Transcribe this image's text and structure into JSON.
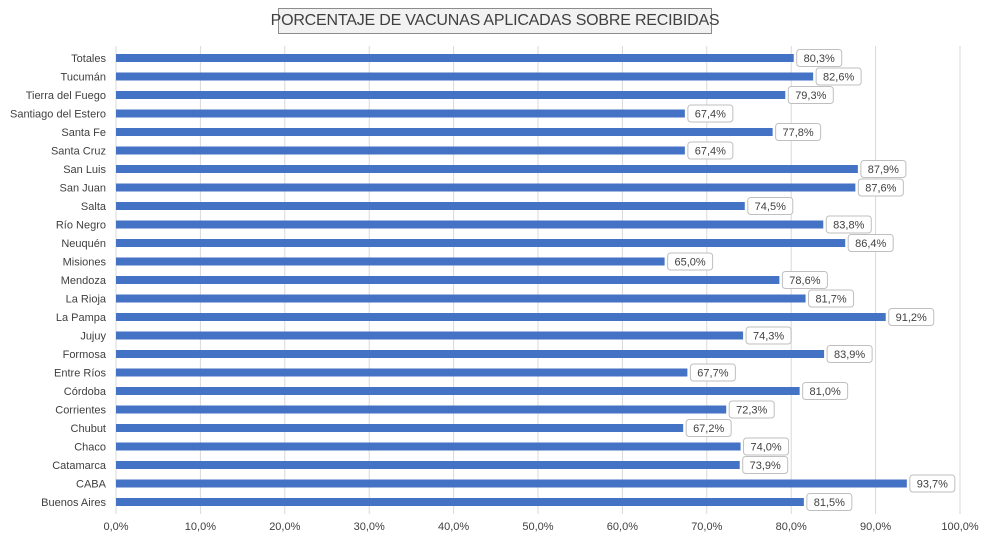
{
  "chart_data": {
    "type": "bar",
    "orientation": "horizontal",
    "title": "PORCENTAJE DE VACUNAS APLICADAS SOBRE RECIBIDAS",
    "categories": [
      "Totales",
      "Tucumán",
      "Tierra del Fuego",
      "Santiago del Estero",
      "Santa Fe",
      "Santa Cruz",
      "San Luis",
      "San Juan",
      "Salta",
      "Río Negro",
      "Neuquén",
      "Misiones",
      "Mendoza",
      "La Rioja",
      "La Pampa",
      "Jujuy",
      "Formosa",
      "Entre Ríos",
      "Córdoba",
      "Corrientes",
      "Chubut",
      "Chaco",
      "Catamarca",
      "CABA",
      "Buenos Aires"
    ],
    "values": [
      80.3,
      82.6,
      79.3,
      67.4,
      77.8,
      67.4,
      87.9,
      87.6,
      74.5,
      83.8,
      86.4,
      65.0,
      78.6,
      81.7,
      91.2,
      74.3,
      83.9,
      67.7,
      81.0,
      72.3,
      67.2,
      74.0,
      73.9,
      93.7,
      81.5
    ],
    "data_labels": [
      "80,3%",
      "82,6%",
      "79,3%",
      "67,4%",
      "77,8%",
      "67,4%",
      "87,9%",
      "87,6%",
      "74,5%",
      "83,8%",
      "86,4%",
      "65,0%",
      "78,6%",
      "81,7%",
      "91,2%",
      "74,3%",
      "83,9%",
      "67,7%",
      "81,0%",
      "72,3%",
      "67,2%",
      "74,0%",
      "73,9%",
      "93,7%",
      "81,5%"
    ],
    "x_ticks": [
      "0,0%",
      "10,0%",
      "20,0%",
      "30,0%",
      "40,0%",
      "50,0%",
      "60,0%",
      "70,0%",
      "80,0%",
      "90,0%",
      "100,0%"
    ],
    "xlim": [
      0,
      100
    ],
    "grid": true,
    "legend": "none",
    "bar_color": "#4472c4",
    "grid_color": "#d9d9d9",
    "text_color": "#404040"
  }
}
